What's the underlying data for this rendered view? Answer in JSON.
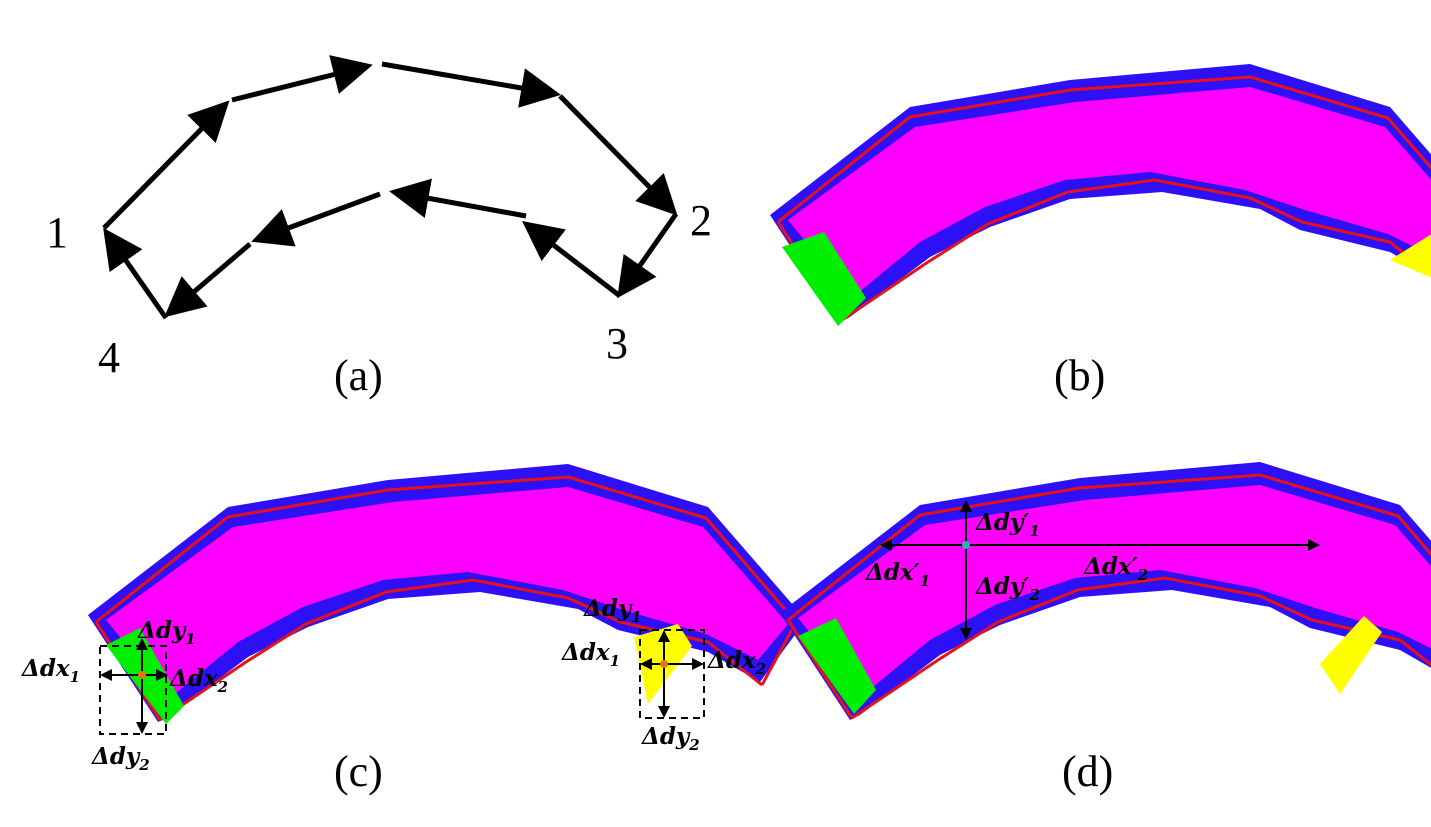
{
  "panels": {
    "a": {
      "label": "(a)",
      "corners": [
        "1",
        "2",
        "3",
        "4"
      ]
    },
    "b": {
      "label": "(b)"
    },
    "c": {
      "label": "(c)",
      "left": {
        "dx1": [
          "Δdx",
          "1"
        ],
        "dx2": [
          "Δdx",
          "2"
        ],
        "dy1": [
          "Δdy",
          "1"
        ],
        "dy2": [
          "Δdy",
          "2"
        ]
      },
      "right": {
        "dx1": [
          "Δdx",
          "1"
        ],
        "dx2": [
          "Δdx",
          "2"
        ],
        "dy1": [
          "Δdy",
          "1"
        ],
        "dy2": [
          "Δdy",
          "2"
        ]
      }
    },
    "d": {
      "label": "(d)",
      "dy1": [
        "Δdy′",
        "1"
      ],
      "dy2": [
        "Δdy′",
        "2"
      ],
      "dx1": [
        "Δdx′",
        "1"
      ],
      "dx2": [
        "Δdx′",
        "2"
      ]
    }
  },
  "colors": {
    "outer_band": "#2d10f5",
    "inner_fill": "#ff00ff",
    "outline": "#e8101a",
    "left_end": "#00ee00",
    "right_end": "#ffff00",
    "arrows": "#000000"
  }
}
